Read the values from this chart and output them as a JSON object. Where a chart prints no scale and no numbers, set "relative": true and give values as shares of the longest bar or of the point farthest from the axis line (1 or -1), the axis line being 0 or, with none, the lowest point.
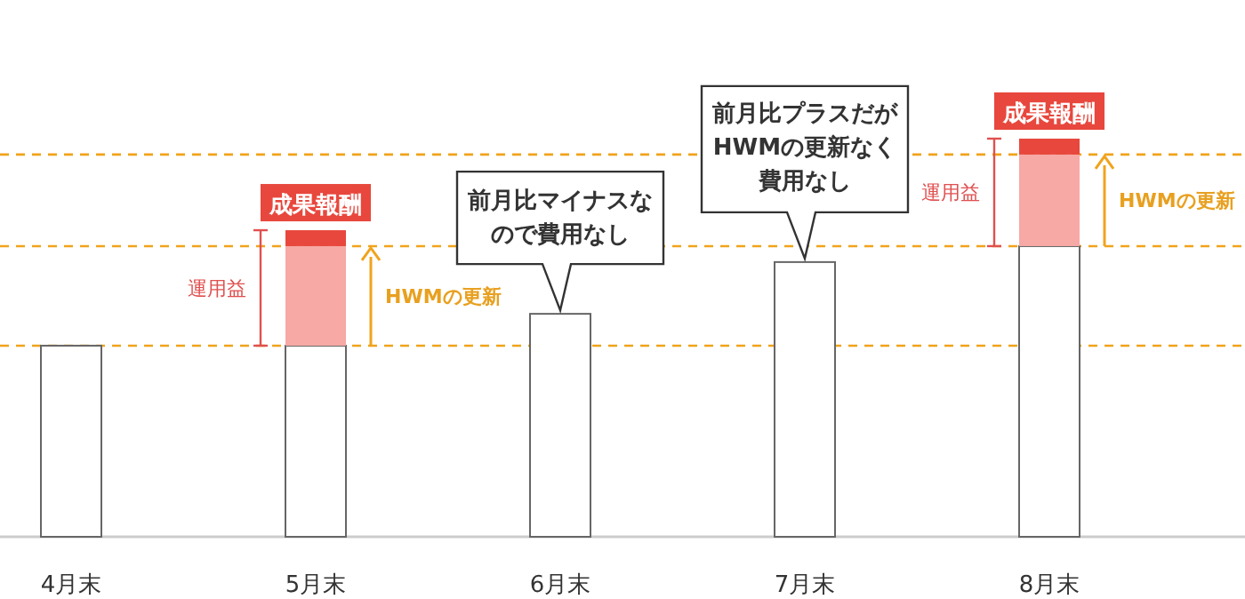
{
  "chart_data": {
    "type": "bar",
    "relative": true,
    "stacked": true,
    "categories": [
      "4月末",
      "5月末",
      "6月末",
      "7月末",
      "8月末"
    ],
    "series": [
      {
        "color": "#ffffff",
        "values": [
          0.48,
          0.48,
          0.56,
          0.69,
          0.73
        ]
      },
      {
        "color": "#f7a9a5",
        "values": [
          0,
          0.25,
          0,
          0,
          0.23
        ]
      },
      {
        "color": "#e8473d",
        "values": [
          0,
          0.04,
          0,
          0,
          0.04
        ]
      }
    ],
    "ref_lines": [
      {
        "axis": "y",
        "value": 0.48,
        "color": "#f0a31c",
        "line_style": "dashed"
      },
      {
        "axis": "y",
        "value": 0.73,
        "color": "#f0a31c",
        "line_style": "dashed"
      },
      {
        "axis": "y",
        "value": 0.96,
        "color": "#f0a31c",
        "line_style": "dashed"
      }
    ],
    "annotations": [
      {
        "text": "成果報酬",
        "x": "5月末",
        "y": 0.77
      },
      "運用益",
      "HWMの更新",
      {
        "text": "前月比マイナスなので費用なし",
        "x": "6月末",
        "y": 0.56
      },
      {
        "text": "前月比プラスだがHWMの更新なく費用なし",
        "x": "7月末",
        "y": 0.69
      },
      {
        "text": "成果報酬",
        "x": "8月末",
        "y": 1.0
      },
      "運用益",
      "HWMの更新"
    ]
  }
}
